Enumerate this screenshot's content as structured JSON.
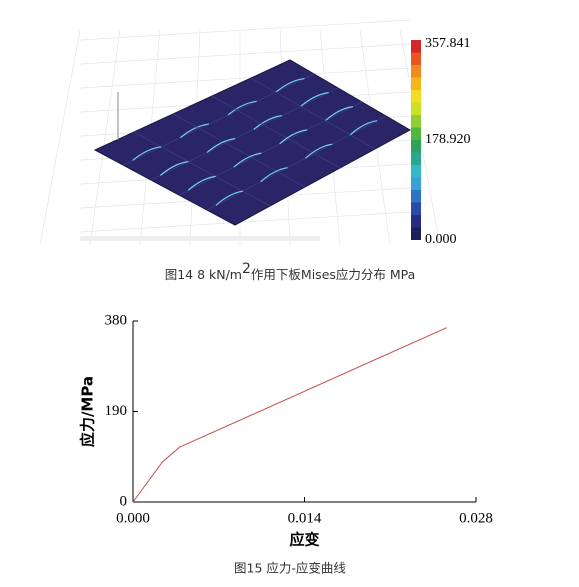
{
  "figure14": {
    "colorbar_labels": [
      "357.841",
      "178.920",
      "0.000"
    ],
    "caption": {
      "before": "图14 8 kN/m",
      "superscript": "2",
      "after": "作用下板Mises应力分布 MPa"
    }
  },
  "chart_data": {
    "type": "line",
    "x": [
      0,
      0.0024,
      0.0038,
      0.0256
    ],
    "values": [
      0,
      84,
      115,
      366
    ],
    "color": "#c0504d",
    "xlim": [
      0,
      0.028
    ],
    "xticks": [
      {
        "value": 0,
        "label": "0.000"
      },
      {
        "value": 0.014,
        "label": "0.014"
      },
      {
        "value": 0.028,
        "label": "0.028"
      }
    ],
    "ylim": [
      0,
      380
    ],
    "yticks": [
      0,
      190,
      380
    ],
    "x_label": "应变",
    "y_label": "应力/MPa"
  },
  "figure15": {
    "caption": "图15 应力-应变曲线"
  }
}
